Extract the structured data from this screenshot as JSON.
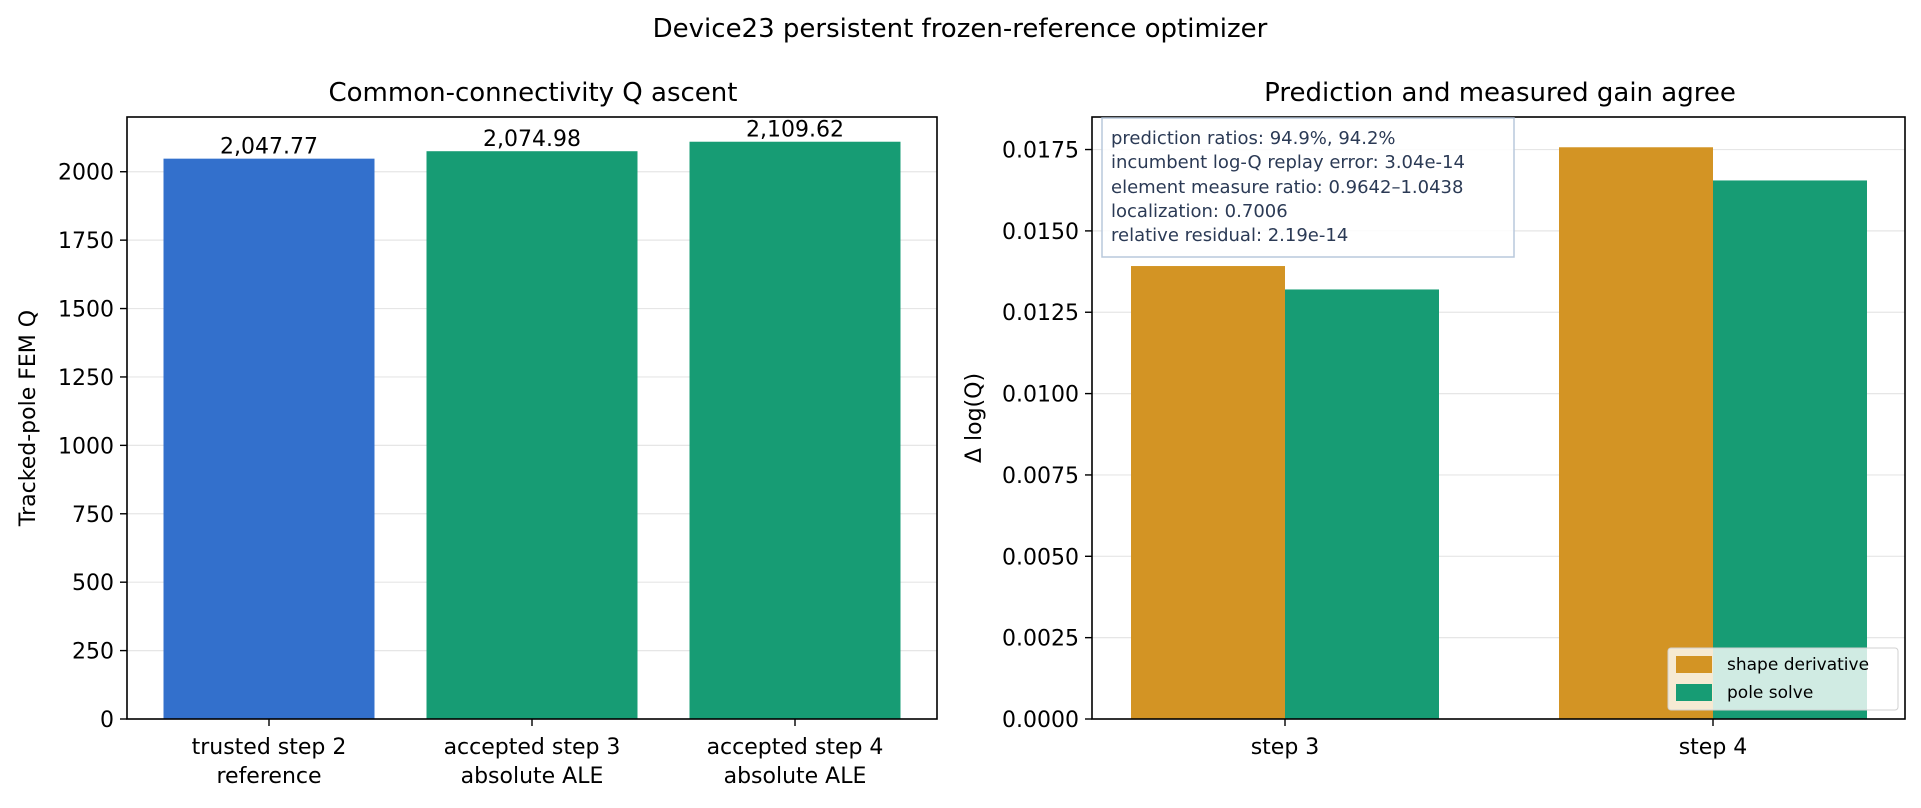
{
  "figure": {
    "title": "Device23 persistent frozen-reference optimizer"
  },
  "colors": {
    "reference": "#3370cc",
    "accepted": "#179c74",
    "shape_derivative": "#d39424",
    "pole_solve": "#179c74",
    "grid": "#e6e6e6",
    "annotation_border": "#b8c8dc",
    "annotation_text": "#2b3a55"
  },
  "chart_data": [
    {
      "type": "bar",
      "title": "Common-connectivity Q ascent",
      "xlabel": "",
      "ylabel": "Tracked-pole FEM Q",
      "categories": [
        [
          "trusted step 2",
          "reference"
        ],
        [
          "accepted step 3",
          "absolute ALE"
        ],
        [
          "accepted step 4",
          "absolute ALE"
        ]
      ],
      "values": [
        2047.77,
        2074.98,
        2109.62
      ],
      "value_labels": [
        "2,047.77",
        "2,074.98",
        "2,109.62"
      ],
      "bar_colors": [
        "#3370cc",
        "#179c74",
        "#179c74"
      ],
      "ylim": [
        0,
        2200
      ],
      "yticks": [
        0,
        250,
        500,
        750,
        1000,
        1250,
        1500,
        1750,
        2000
      ],
      "ytick_labels": [
        "0",
        "250",
        "500",
        "750",
        "1000",
        "1250",
        "1500",
        "1750",
        "2000"
      ],
      "grid": "horizontal"
    },
    {
      "type": "bar",
      "title": "Prediction and measured gain agree",
      "xlabel": "",
      "ylabel": "Δ log(Q)",
      "categories": [
        "step 3",
        "step 4"
      ],
      "series": [
        {
          "name": "shape derivative",
          "values": [
            0.01392,
            0.01757
          ],
          "color": "#d39424"
        },
        {
          "name": "pole solve",
          "values": [
            0.0132,
            0.01655
          ],
          "color": "#179c74"
        }
      ],
      "ylim": [
        0,
        0.0185
      ],
      "yticks": [
        0,
        0.0025,
        0.005,
        0.0075,
        0.01,
        0.0125,
        0.015,
        0.0175
      ],
      "ytick_labels": [
        "0.0000",
        "0.0025",
        "0.0050",
        "0.0075",
        "0.0100",
        "0.0125",
        "0.0150",
        "0.0175"
      ],
      "grid": "horizontal",
      "legend_position": "lower right",
      "annotation_lines": [
        "prediction ratios: 94.9%, 94.2%",
        "incumbent log-Q replay error: 3.04e-14",
        "element measure ratio: 0.9642–1.0438",
        "localization: 0.7006",
        "relative residual: 2.19e-14"
      ]
    }
  ]
}
